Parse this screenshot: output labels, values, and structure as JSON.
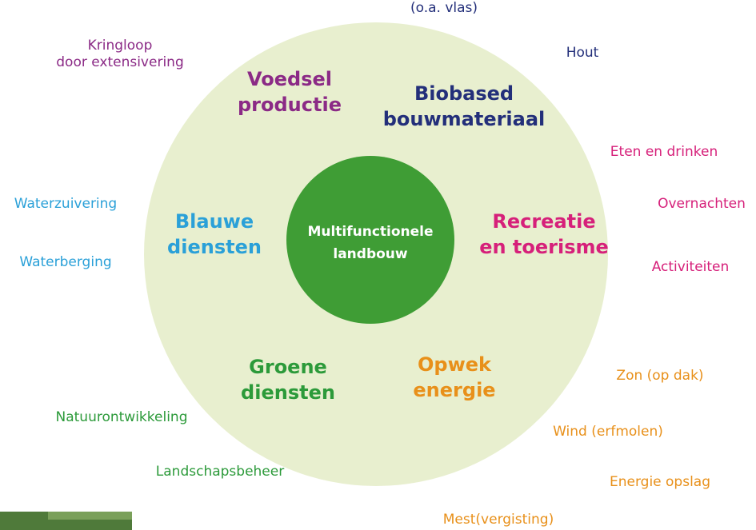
{
  "center": {
    "lines": [
      "Multifunctionele",
      "landbouw"
    ]
  },
  "categories": [
    {
      "title": [
        "Voedsel",
        "productie"
      ],
      "items": [
        [
          "Kringloop",
          "door extensivering"
        ]
      ]
    },
    {
      "title": [
        "Biobased",
        "bouwmateriaal"
      ],
      "items": [
        [
          "(o.a. vlas)"
        ],
        [
          "Hout"
        ]
      ]
    },
    {
      "title": [
        "Recreatie",
        "en toerisme"
      ],
      "items": [
        [
          "Eten en drinken"
        ],
        [
          "Overnachten"
        ],
        [
          "Activiteiten"
        ]
      ]
    },
    {
      "title": [
        "Opwek",
        "energie"
      ],
      "items": [
        [
          "Zon (op dak)"
        ],
        [
          "Wind (erfmolen)"
        ],
        [
          "Energie opslag"
        ],
        [
          "Mest(vergisting)"
        ]
      ]
    },
    {
      "title": [
        "Groene",
        "diensten"
      ],
      "items": [
        [
          "Natuurontwikkeling"
        ],
        [
          "Landschapsbeheer"
        ]
      ]
    },
    {
      "title": [
        "Blauwe",
        "diensten"
      ],
      "items": [
        [
          "Waterzuivering"
        ],
        [
          "Waterberging"
        ]
      ]
    }
  ]
}
